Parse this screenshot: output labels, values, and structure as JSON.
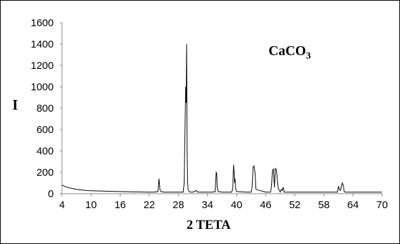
{
  "chart_data": {
    "type": "line",
    "title": "",
    "annotation": {
      "text": "CaCO",
      "subscript": "3"
    },
    "xlabel": "2 TETA",
    "ylabel": "I",
    "xlim": [
      4,
      70
    ],
    "ylim": [
      0,
      1600
    ],
    "xticks": [
      "4",
      "10",
      "16",
      "22",
      "28",
      "34",
      "40",
      "46",
      "52",
      "58",
      "64",
      "70"
    ],
    "yticks": [
      "0",
      "200",
      "400",
      "600",
      "800",
      "1000",
      "1200",
      "1400",
      "1600"
    ],
    "grid": false,
    "series": [
      {
        "color": "#000000",
        "x": [
          4,
          5,
          6,
          7,
          8,
          9,
          10,
          12,
          14,
          16,
          18,
          20,
          22,
          23,
          23.8,
          24.0,
          24.2,
          24.4,
          25,
          27,
          29,
          29.2,
          29.5,
          29.6,
          29.7,
          29.8,
          29.9,
          30.0,
          30.2,
          30.5,
          31,
          31.7,
          32,
          33,
          35,
          35.6,
          35.8,
          35.9,
          36.0,
          36.2,
          37,
          39,
          39.2,
          39.4,
          39.5,
          39.6,
          39.7,
          39.8,
          40,
          42,
          43,
          43.2,
          43.4,
          43.6,
          43.8,
          44,
          46,
          47,
          47.2,
          47.4,
          47.6,
          47.8,
          48.0,
          48.2,
          48.6,
          49,
          49.2,
          49.4,
          49.6,
          49.8,
          50,
          50.1,
          50.2,
          50.4,
          50.6,
          51,
          54,
          56,
          59,
          60.8,
          61,
          61.2,
          61.4,
          61.8,
          62,
          62.2,
          62.4,
          62.6,
          63,
          64,
          66,
          68,
          70
        ],
        "y": [
          80,
          60,
          50,
          40,
          35,
          30,
          28,
          25,
          22,
          20,
          18,
          16,
          15,
          15,
          20,
          140,
          40,
          20,
          15,
          15,
          15,
          100,
          1000,
          850,
          1400,
          400,
          100,
          40,
          20,
          15,
          15,
          30,
          15,
          15,
          15,
          20,
          200,
          190,
          60,
          20,
          15,
          15,
          50,
          270,
          200,
          100,
          140,
          50,
          20,
          15,
          15,
          60,
          250,
          260,
          200,
          40,
          15,
          15,
          70,
          220,
          230,
          60,
          240,
          220,
          50,
          15,
          40,
          30,
          60,
          15,
          15,
          15,
          15,
          15,
          15,
          15,
          15,
          15,
          15,
          15,
          70,
          40,
          30,
          100,
          80,
          20,
          15,
          15,
          15,
          15,
          15,
          15,
          15
        ]
      }
    ]
  }
}
